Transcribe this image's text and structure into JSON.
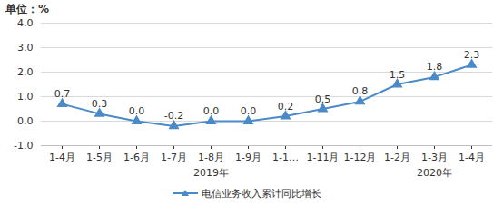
{
  "chart_data": {
    "type": "line",
    "ylabel": "单位：%",
    "categories": [
      "1-4月",
      "1-5月",
      "1-6月",
      "1-7月",
      "1-8月",
      "1-9月",
      "1-1…",
      "1-11月",
      "1-12月",
      "1-2月",
      "1-3月",
      "1-4月"
    ],
    "series": [
      {
        "name": "电信业务收入累计同比增长",
        "color": "#4a8ac9",
        "marker": "triangle",
        "values": [
          0.7,
          0.3,
          0,
          -0.2,
          0,
          0,
          0.2,
          0.5,
          0.8,
          1.5,
          1.8,
          2.3
        ],
        "value_labels": [
          "0.7",
          "0.3",
          "0.0",
          "-0.2",
          "0.0",
          "0.0",
          "0.2",
          "0.5",
          "0.8",
          "1.5",
          "1.8",
          "2.3"
        ]
      }
    ],
    "ylim": [
      -1,
      4
    ],
    "yticks": [
      {
        "value": -1,
        "label": "-1.0"
      },
      {
        "value": 0,
        "label": "0.0"
      },
      {
        "value": 1,
        "label": "1.0"
      },
      {
        "value": 2,
        "label": "2.0"
      },
      {
        "value": 3,
        "label": "3.0"
      },
      {
        "value": 4,
        "label": "4.0"
      }
    ],
    "grid": true,
    "data_labels": true,
    "legend": "bottom",
    "annotations": [
      {
        "text": "2019年",
        "x": "1-8月"
      },
      {
        "text": "2020年",
        "x": "1-3月"
      }
    ]
  }
}
